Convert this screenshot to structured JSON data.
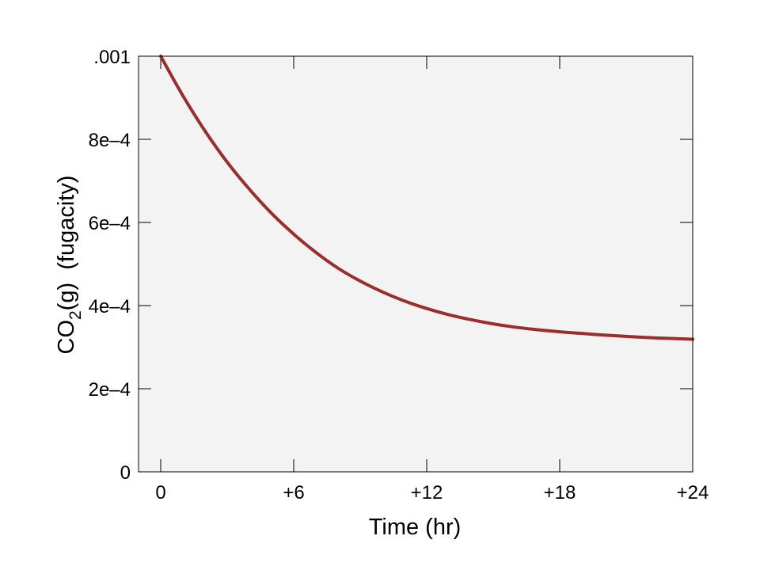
{
  "chart_data": {
    "type": "line",
    "title": "",
    "xlabel": "Time (hr)",
    "ylabel": {
      "prefix": "CO",
      "subscript": "2",
      "suffix": "(g)  (fugacity)"
    },
    "xlim": [
      -1,
      24
    ],
    "ylim": [
      0,
      0.001
    ],
    "x_ticks": [
      {
        "value": 0,
        "label": "0"
      },
      {
        "value": 6,
        "label": "+6"
      },
      {
        "value": 12,
        "label": "+12"
      },
      {
        "value": 18,
        "label": "+18"
      },
      {
        "value": 24,
        "label": "+24"
      }
    ],
    "y_ticks": [
      {
        "value": 0,
        "label": "0"
      },
      {
        "value": 0.0002,
        "label": "2e–4"
      },
      {
        "value": 0.0004,
        "label": "4e–4"
      },
      {
        "value": 0.0006,
        "label": "6e–4"
      },
      {
        "value": 0.0008,
        "label": "8e–4"
      },
      {
        "value": 0.001,
        "label": ".001"
      }
    ],
    "grid": false,
    "plot_background": "#f3f3f3",
    "series": [
      {
        "color": "#9b2d2d",
        "x": [
          0,
          1,
          2,
          3,
          4,
          5,
          6,
          7,
          8,
          9,
          10,
          11,
          12,
          13,
          14,
          15,
          16,
          17,
          18,
          19,
          20,
          21,
          22,
          23,
          24
        ],
        "y": [
          0.001,
          0.000905,
          0.00082,
          0.000745,
          0.00068,
          0.000622,
          0.000572,
          0.000528,
          0.00049,
          0.000459,
          0.000433,
          0.000411,
          0.000393,
          0.000378,
          0.000366,
          0.000356,
          0.000348,
          0.000342,
          0.000337,
          0.000333,
          0.000329,
          0.000326,
          0.000323,
          0.000321,
          0.000319
        ]
      }
    ]
  }
}
